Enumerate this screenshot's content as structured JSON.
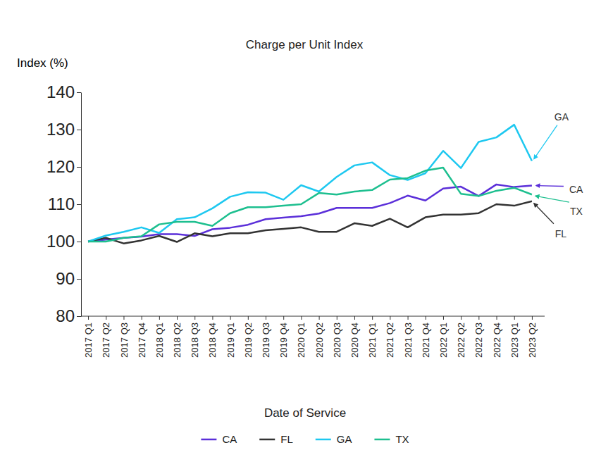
{
  "chart_data": {
    "type": "line",
    "title": "Charge per Unit Index",
    "y_label": "Index (%)",
    "x_label": "Date of Service",
    "categories": [
      "2017 Q1",
      "2017 Q2",
      "2017 Q3",
      "2017 Q4",
      "2018 Q1",
      "2018 Q2",
      "2018 Q3",
      "2018 Q4",
      "2019 Q1",
      "2019 Q2",
      "2019 Q3",
      "2019 Q4",
      "2020 Q1",
      "2020 Q2",
      "2020 Q3",
      "2020 Q4",
      "2021 Q1",
      "2021 Q2",
      "2021 Q3",
      "2021 Q4",
      "2022 Q1",
      "2022 Q2",
      "2022 Q3",
      "2022 Q4",
      "2023 Q1",
      "2023 Q2"
    ],
    "series": [
      {
        "name": "CA",
        "color": "#5b2fd9",
        "values": [
          100,
          100.5,
          101,
          101.3,
          102,
          102,
          101.5,
          103.3,
          103.7,
          104.5,
          106,
          106.4,
          106.8,
          107.5,
          109,
          109,
          109,
          110.3,
          112.3,
          111,
          114.2,
          114.7,
          112.2,
          115.3,
          114.6,
          115
        ]
      },
      {
        "name": "FL",
        "color": "#333333",
        "values": [
          100,
          101,
          99.5,
          100.3,
          101.5,
          99.9,
          102.2,
          101.4,
          102.2,
          102.2,
          103,
          103.4,
          103.8,
          102.6,
          102.6,
          104.9,
          104.2,
          106.1,
          103.8,
          106.5,
          107.2,
          107.2,
          107.6,
          110,
          109.6,
          110.8
        ]
      },
      {
        "name": "GA",
        "color": "#1ec8f0",
        "values": [
          100,
          101.6,
          102.6,
          103.8,
          102.3,
          106,
          106.5,
          108.9,
          112,
          113.2,
          113.1,
          111.2,
          115.1,
          113.4,
          117.3,
          120.4,
          121.2,
          117.8,
          116.5,
          118.3,
          124.3,
          119.7,
          126.7,
          127.9,
          131.3,
          121.6
        ]
      },
      {
        "name": "TX",
        "color": "#1dbf8f",
        "values": [
          100,
          100,
          101,
          101.4,
          104.6,
          105.3,
          105.3,
          104.2,
          107.6,
          109.2,
          109.2,
          109.6,
          110,
          113,
          112.6,
          113.4,
          113.8,
          116.6,
          117,
          119,
          119.8,
          112.8,
          112.2,
          113.6,
          114.4,
          112.6
        ]
      }
    ],
    "ylim": [
      80,
      140
    ],
    "yticks": [
      80,
      90,
      100,
      110,
      120,
      130,
      140
    ],
    "grid": false,
    "legend": "bottom",
    "annotations": [
      {
        "text": "GA"
      },
      {
        "text": "CA"
      },
      {
        "text": "TX"
      },
      {
        "text": "FL"
      }
    ]
  }
}
